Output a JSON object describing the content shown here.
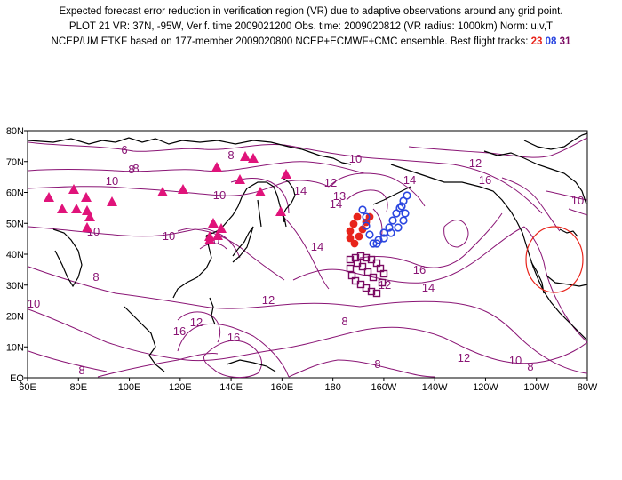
{
  "header": {
    "line1": "Expected forecast error reduction in verification region (VR) due to adaptive observations around any grid point.",
    "line2": "PLOT 21 VR: 37N, -95W, Verif. time 2009021200 Obs. time: 2009020812 (VR radius: 1000km) Norm: u,v,T",
    "line3_prefix": "NCEP/UM ETKF based on 177-member 2009020800 NCEP+ECMWF+CMC ensemble. Best flight tracks:",
    "track_1": "23",
    "track_2": "08",
    "track_3": "31"
  },
  "map": {
    "lon_labels": [
      "60E",
      "80E",
      "100E",
      "120E",
      "140E",
      "160E",
      "180",
      "160W",
      "140W",
      "120W",
      "100W",
      "80W"
    ],
    "lat_labels": [
      "EQ",
      "10N",
      "20N",
      "30N",
      "40N",
      "50N",
      "60N",
      "70N",
      "80N"
    ],
    "contour_labels": [
      "6",
      "8",
      "10",
      "10",
      "10",
      "10",
      "10",
      "12",
      "12",
      "12",
      "12",
      "12",
      "12",
      "13",
      "14",
      "14",
      "14",
      "14",
      "14",
      "16",
      "16",
      "16",
      "16",
      "8",
      "8",
      "8",
      "8",
      "8",
      "8",
      "8",
      "10",
      "10",
      "10",
      "10"
    ],
    "colors": {
      "contour": "#8a1575",
      "coast": "#000000",
      "triangle": "#e0137a",
      "track_red": "#e8241b",
      "track_blue": "#2a46e0",
      "track_purple": "#7a0a62",
      "vr_circle": "#e8241b"
    }
  }
}
